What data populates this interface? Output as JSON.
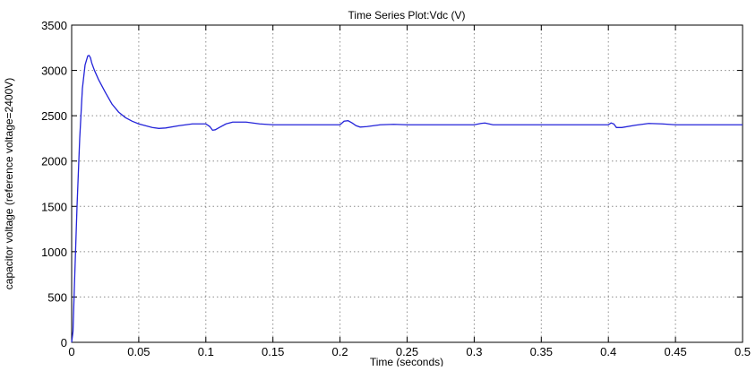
{
  "chart_data": {
    "type": "line",
    "title": "Time Series Plot:Vdc (V)",
    "xlabel": "Time (seconds)",
    "ylabel": "capacitor voltage (reference voltage=2400V)",
    "xlim": [
      0,
      0.5
    ],
    "ylim": [
      0,
      3500
    ],
    "xticks": [
      0,
      0.05,
      0.1,
      0.15,
      0.2,
      0.25,
      0.3,
      0.35,
      0.4,
      0.45,
      0.5
    ],
    "xtick_labels": [
      "0",
      "0.05",
      "0.1",
      "0.15",
      "0.2",
      "0.25",
      "0.3",
      "0.35",
      "0.4",
      "0.45",
      "0.5"
    ],
    "yticks": [
      0,
      500,
      1000,
      1500,
      2000,
      2500,
      3000,
      3500
    ],
    "ytick_labels": [
      "0",
      "500",
      "1000",
      "1500",
      "2000",
      "2500",
      "3000",
      "3500"
    ],
    "grid": true,
    "line_color": "#2323d9",
    "series": [
      {
        "x": [
          0,
          0.001,
          0.002,
          0.004,
          0.006,
          0.008,
          0.01,
          0.012,
          0.013,
          0.014,
          0.015,
          0.017,
          0.02,
          0.025,
          0.03,
          0.035,
          0.04,
          0.045,
          0.05,
          0.055,
          0.06,
          0.065,
          0.07,
          0.08,
          0.09,
          0.1,
          0.103,
          0.105,
          0.107,
          0.11,
          0.115,
          0.12,
          0.13,
          0.14,
          0.15,
          0.16,
          0.17,
          0.18,
          0.19,
          0.2,
          0.203,
          0.206,
          0.209,
          0.212,
          0.215,
          0.22,
          0.23,
          0.24,
          0.25,
          0.26,
          0.28,
          0.3,
          0.305,
          0.308,
          0.311,
          0.314,
          0.32,
          0.33,
          0.35,
          0.37,
          0.39,
          0.4,
          0.402,
          0.404,
          0.406,
          0.41,
          0.42,
          0.43,
          0.44,
          0.45,
          0.47,
          0.49,
          0.5
        ],
        "y": [
          0,
          120,
          600,
          1500,
          2250,
          2800,
          3060,
          3160,
          3165,
          3140,
          3080,
          3000,
          2900,
          2760,
          2630,
          2540,
          2480,
          2440,
          2410,
          2390,
          2370,
          2360,
          2365,
          2390,
          2410,
          2410,
          2380,
          2340,
          2345,
          2370,
          2410,
          2430,
          2430,
          2410,
          2400,
          2400,
          2400,
          2400,
          2400,
          2400,
          2440,
          2445,
          2420,
          2390,
          2375,
          2380,
          2400,
          2405,
          2400,
          2400,
          2400,
          2400,
          2415,
          2420,
          2410,
          2400,
          2400,
          2400,
          2400,
          2400,
          2400,
          2400,
          2420,
          2410,
          2370,
          2370,
          2395,
          2415,
          2410,
          2400,
          2400,
          2400,
          2400
        ]
      }
    ]
  }
}
